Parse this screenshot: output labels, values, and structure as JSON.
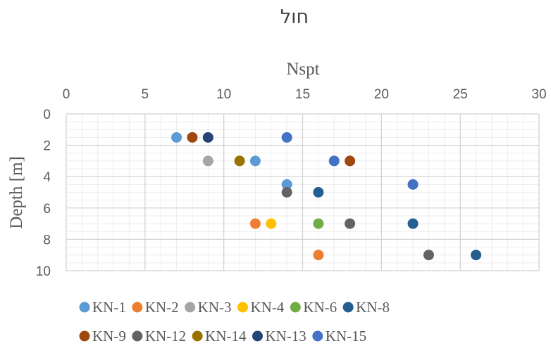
{
  "chart_data": {
    "type": "scatter",
    "title": "חול",
    "xlabel": "Nspt",
    "ylabel": "Depth [m]",
    "x_axis_position": "top",
    "y_axis_reversed": true,
    "xlim": [
      0,
      30
    ],
    "ylim": [
      0,
      10
    ],
    "x_major_step": 5,
    "x_minor_step": 1,
    "y_major_step": 2,
    "y_minor_step": 0.5,
    "grid": true,
    "legend_position": "bottom",
    "series": [
      {
        "name": "KN-1",
        "color": "#5B9BD5",
        "points": [
          {
            "x": 7,
            "y": 1.5
          },
          {
            "x": 12,
            "y": 3
          },
          {
            "x": 14,
            "y": 4.5
          }
        ]
      },
      {
        "name": "KN-2",
        "color": "#ED7D31",
        "points": [
          {
            "x": 12,
            "y": 7
          },
          {
            "x": 16,
            "y": 9
          }
        ]
      },
      {
        "name": "KN-3",
        "color": "#A5A5A5",
        "points": [
          {
            "x": 9,
            "y": 3
          }
        ]
      },
      {
        "name": "KN-4",
        "color": "#FFC000",
        "points": [
          {
            "x": 13,
            "y": 7
          }
        ]
      },
      {
        "name": "KN-6",
        "color": "#70AD47",
        "points": [
          {
            "x": 16,
            "y": 7
          }
        ]
      },
      {
        "name": "KN-8",
        "color": "#255E91",
        "points": [
          {
            "x": 16,
            "y": 5
          },
          {
            "x": 22,
            "y": 7
          },
          {
            "x": 26,
            "y": 9
          }
        ]
      },
      {
        "name": "KN-9",
        "color": "#9E480E",
        "points": [
          {
            "x": 8,
            "y": 1.5
          },
          {
            "x": 18,
            "y": 3
          }
        ]
      },
      {
        "name": "KN-12",
        "color": "#636363",
        "points": [
          {
            "x": 14,
            "y": 5
          },
          {
            "x": 18,
            "y": 7
          },
          {
            "x": 23,
            "y": 9
          }
        ]
      },
      {
        "name": "KN-14",
        "color": "#997300",
        "points": [
          {
            "x": 11,
            "y": 3
          }
        ]
      },
      {
        "name": "KN-13",
        "color": "#264478",
        "points": [
          {
            "x": 9,
            "y": 1.5
          }
        ]
      },
      {
        "name": "KN-15",
        "color": "#4472C4",
        "points": [
          {
            "x": 14,
            "y": 1.5
          },
          {
            "x": 17,
            "y": 3
          },
          {
            "x": 22,
            "y": 4.5
          }
        ]
      }
    ]
  }
}
